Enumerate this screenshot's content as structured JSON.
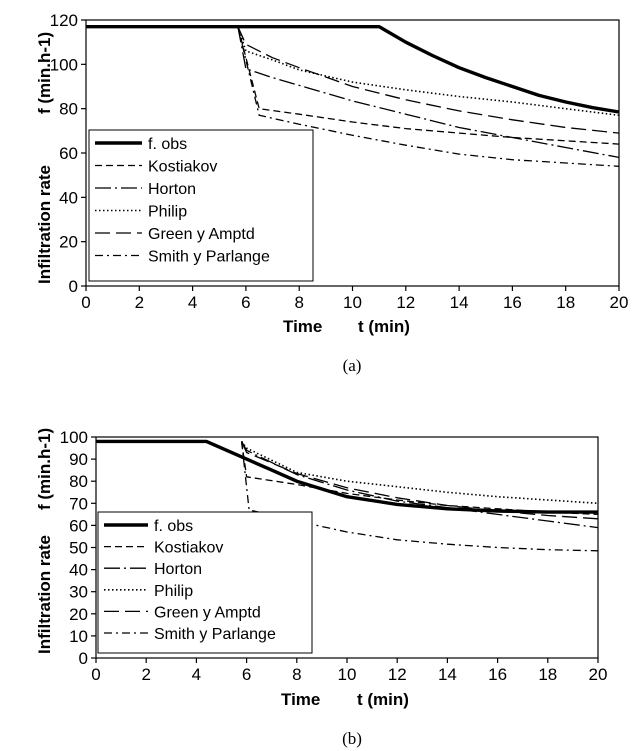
{
  "chart_data": [
    {
      "panel_label": "(a)",
      "type": "line",
      "xlabel_left": "Time",
      "xlabel_right": "t (min)",
      "ylabel_left": "Infiltration rate",
      "ylabel_right": "f (min.h-1)",
      "xlim": [
        0,
        20
      ],
      "ylim": [
        0,
        120
      ],
      "xticks": [
        "0",
        "2",
        "4",
        "6",
        "8",
        "10",
        "12",
        "14",
        "16",
        "18",
        "20"
      ],
      "yticks": [
        "0",
        "20",
        "40",
        "60",
        "80",
        "100",
        "120"
      ],
      "legend_position": "bottom-left",
      "series": [
        {
          "name": "f. obs",
          "style": "solid-thick",
          "x": [
            0,
            11,
            12,
            13,
            14,
            15,
            16,
            17,
            18,
            19,
            20
          ],
          "y": [
            117,
            117,
            110,
            104,
            98.5,
            94,
            90,
            86,
            83,
            80.5,
            78.5
          ]
        },
        {
          "name": "Kostiakov",
          "style": "dashed",
          "x": [
            5.7,
            6.5,
            8,
            10,
            12,
            14,
            16,
            18,
            20
          ],
          "y": [
            117,
            80,
            77.5,
            74,
            71,
            69,
            67,
            65.5,
            64
          ]
        },
        {
          "name": "Horton",
          "style": "longdash-dot",
          "x": [
            5.7,
            6,
            7,
            8,
            10,
            12,
            14,
            16,
            18,
            20
          ],
          "y": [
            117,
            98,
            94,
            90.5,
            83.5,
            77.5,
            71.5,
            67,
            62.5,
            58
          ]
        },
        {
          "name": "Philip",
          "style": "dotted",
          "x": [
            5.7,
            6,
            7,
            8,
            10,
            12,
            14,
            16,
            18,
            20
          ],
          "y": [
            117,
            106,
            102,
            97.5,
            92,
            88.5,
            85.5,
            83,
            80,
            77
          ]
        },
        {
          "name": "Green y Amptd",
          "style": "longdash",
          "x": [
            5.7,
            6,
            7,
            8,
            10,
            12,
            14,
            16,
            18,
            20
          ],
          "y": [
            117,
            109,
            103,
            98.5,
            90,
            84,
            79,
            75,
            71.5,
            69
          ]
        },
        {
          "name": "Smith y Parlange",
          "style": "dashdot",
          "x": [
            5.7,
            6.5,
            8,
            10,
            12,
            14,
            16,
            18,
            20
          ],
          "y": [
            117,
            77,
            73,
            68,
            63.5,
            59.5,
            57,
            55.5,
            54
          ]
        }
      ]
    },
    {
      "panel_label": "(b)",
      "type": "line",
      "xlabel_left": "Time",
      "xlabel_right": "t (min)",
      "ylabel_left": "Infiltration rate",
      "ylabel_right": "f (min.h-1)",
      "xlim": [
        0,
        20
      ],
      "ylim": [
        0,
        100
      ],
      "xticks": [
        "0",
        "2",
        "4",
        "6",
        "8",
        "10",
        "12",
        "14",
        "16",
        "18",
        "20"
      ],
      "yticks": [
        "0",
        "10",
        "20",
        "30",
        "40",
        "50",
        "60",
        "70",
        "80",
        "90",
        "100"
      ],
      "legend_position": "bottom-left",
      "series": [
        {
          "name": "f. obs",
          "style": "solid-thick",
          "x": [
            0,
            4.4,
            5,
            6,
            7,
            8,
            10,
            12,
            14,
            16,
            18,
            20
          ],
          "y": [
            98,
            98,
            95,
            90,
            85,
            80,
            73,
            69.5,
            67.5,
            66.5,
            66,
            66
          ]
        },
        {
          "name": "Kostiakov",
          "style": "dashed",
          "x": [
            5.8,
            6,
            8,
            10,
            12,
            14,
            16,
            18,
            20
          ],
          "y": [
            98,
            82,
            78.5,
            74.5,
            71.5,
            69,
            67.5,
            66,
            65
          ]
        },
        {
          "name": "Horton",
          "style": "longdash-dot",
          "x": [
            5.8,
            6,
            8,
            10,
            12,
            14,
            16,
            18,
            20
          ],
          "y": [
            98,
            94,
            83,
            76,
            71,
            68,
            65,
            62,
            59
          ]
        },
        {
          "name": "Philip",
          "style": "dotted",
          "x": [
            5.8,
            6,
            8,
            10,
            12,
            14,
            16,
            18,
            20
          ],
          "y": [
            98,
            95,
            84,
            80,
            77.5,
            75,
            73,
            71.5,
            70
          ]
        },
        {
          "name": "Green y Amptd",
          "style": "longdash",
          "x": [
            5.8,
            6,
            8,
            10,
            12,
            14,
            16,
            18,
            20
          ],
          "y": [
            98,
            93,
            83.5,
            77,
            72.5,
            69,
            66.5,
            64.5,
            63
          ]
        },
        {
          "name": "Smith y Parlange",
          "style": "dashdot",
          "x": [
            5.8,
            6.1,
            8,
            10,
            12,
            14,
            16,
            18,
            20
          ],
          "y": [
            98,
            67,
            62,
            57,
            53.5,
            51.5,
            50,
            49,
            48.5
          ]
        }
      ]
    }
  ]
}
